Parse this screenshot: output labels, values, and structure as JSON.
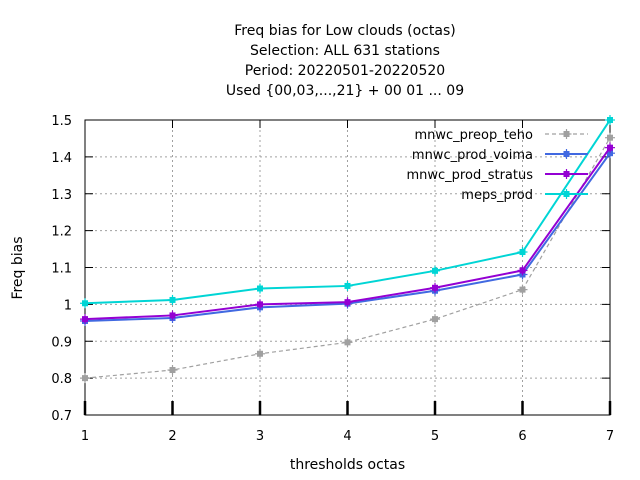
{
  "chart_data": {
    "type": "line",
    "title_lines": [
      "Freq bias  for Low clouds (octas)",
      "Selection: ALL    631 stations",
      "Period: 20220501-20220520",
      "Used {00,03,...,21} + 00 01 ... 09"
    ],
    "xlabel": "thresholds octas",
    "ylabel": "Freq bias",
    "x": [
      1,
      2,
      3,
      4,
      5,
      6,
      7
    ],
    "xlim": [
      1,
      7
    ],
    "ylim": [
      0.7,
      1.5
    ],
    "xticks": [
      "1",
      "2",
      "3",
      "4",
      "5",
      "6",
      "7"
    ],
    "yticks": [
      "0.7",
      "0.8",
      "0.9",
      "1",
      "1.1",
      "1.2",
      "1.3",
      "1.4",
      "1.5"
    ],
    "grid": true,
    "legend_position": "top-right",
    "series": [
      {
        "name": "mnwc_preop_teho",
        "color": "#a0a0a0",
        "dashed": true,
        "values": [
          0.8,
          0.822,
          0.866,
          0.897,
          0.96,
          1.04,
          1.452
        ]
      },
      {
        "name": "mnwc_prod_voima",
        "color": "#4169e1",
        "dashed": false,
        "values": [
          0.955,
          0.963,
          0.992,
          1.002,
          1.037,
          1.081,
          1.41
        ]
      },
      {
        "name": "mnwc_prod_stratus",
        "color": "#9400d3",
        "dashed": false,
        "values": [
          0.96,
          0.97,
          1.0,
          1.006,
          1.045,
          1.092,
          1.425
        ]
      },
      {
        "name": "meps_prod",
        "color": "#00d5d5",
        "dashed": false,
        "values": [
          1.003,
          1.012,
          1.043,
          1.05,
          1.091,
          1.142,
          1.5
        ]
      }
    ]
  }
}
